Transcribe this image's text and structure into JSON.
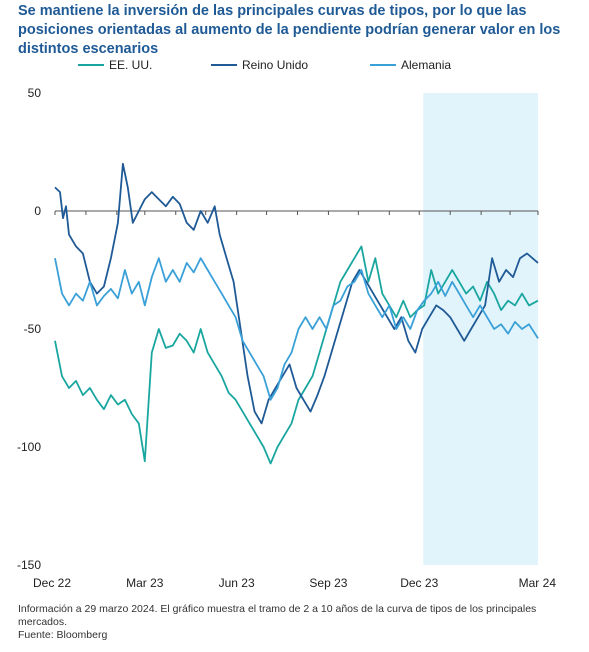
{
  "title": "Se mantiene la inversión de las principales curvas de tipos, por lo que las posiciones orientadas al aumento de la pendiente podrían generar valor en los distintos escenarios",
  "footnote": {
    "line1": "Información a 29 marzo 2024. El gráfico muestra el tramo de 2 a 10 años de la curva de tipos de los principales mercados.",
    "line2": "Fuente: Bloomberg"
  },
  "chart_data": {
    "type": "line",
    "title": "Se mantiene la inversión de las principales curvas de tipos, por lo que las posiciones orientadas al aumento de la pendiente podrían generar valor en los distintos escenarios",
    "xlabel": "",
    "ylabel": "",
    "ylim": [
      -150,
      50
    ],
    "yticks": [
      "50",
      "0",
      "-50",
      "-100",
      "-150"
    ],
    "xticks": [
      "Dec 22",
      "Mar 23",
      "Jun 23",
      "Sep 23",
      "Dec 23",
      "Mar 24"
    ],
    "grid": false,
    "legend_position": "top",
    "highlight_region": {
      "from": "2023-12-05",
      "to": "2024-03-29",
      "color": "#e2f4fb"
    },
    "series": [
      {
        "name": "EE. UU.",
        "color": "#1aa6a0",
        "points": [
          [
            "2022-12-01",
            -55
          ],
          [
            "2022-12-08",
            -70
          ],
          [
            "2022-12-15",
            -75
          ],
          [
            "2022-12-22",
            -72
          ],
          [
            "2022-12-29",
            -78
          ],
          [
            "2023-01-05",
            -75
          ],
          [
            "2023-01-12",
            -80
          ],
          [
            "2023-01-19",
            -84
          ],
          [
            "2023-01-26",
            -78
          ],
          [
            "2023-02-02",
            -82
          ],
          [
            "2023-02-09",
            -80
          ],
          [
            "2023-02-16",
            -86
          ],
          [
            "2023-02-23",
            -90
          ],
          [
            "2023-03-01",
            -106
          ],
          [
            "2023-03-08",
            -60
          ],
          [
            "2023-03-15",
            -50
          ],
          [
            "2023-03-22",
            -58
          ],
          [
            "2023-03-29",
            -57
          ],
          [
            "2023-04-05",
            -52
          ],
          [
            "2023-04-12",
            -55
          ],
          [
            "2023-04-19",
            -60
          ],
          [
            "2023-04-26",
            -50
          ],
          [
            "2023-05-03",
            -60
          ],
          [
            "2023-05-10",
            -65
          ],
          [
            "2023-05-17",
            -70
          ],
          [
            "2023-05-24",
            -77
          ],
          [
            "2023-05-31",
            -80
          ],
          [
            "2023-06-07",
            -85
          ],
          [
            "2023-06-14",
            -90
          ],
          [
            "2023-06-21",
            -95
          ],
          [
            "2023-06-28",
            -100
          ],
          [
            "2023-07-05",
            -107
          ],
          [
            "2023-07-12",
            -100
          ],
          [
            "2023-07-19",
            -95
          ],
          [
            "2023-07-26",
            -90
          ],
          [
            "2023-08-02",
            -80
          ],
          [
            "2023-08-09",
            -75
          ],
          [
            "2023-08-16",
            -70
          ],
          [
            "2023-08-23",
            -60
          ],
          [
            "2023-08-30",
            -50
          ],
          [
            "2023-09-06",
            -40
          ],
          [
            "2023-09-13",
            -30
          ],
          [
            "2023-09-20",
            -25
          ],
          [
            "2023-09-27",
            -20
          ],
          [
            "2023-10-04",
            -15
          ],
          [
            "2023-10-11",
            -30
          ],
          [
            "2023-10-18",
            -20
          ],
          [
            "2023-10-25",
            -35
          ],
          [
            "2023-11-01",
            -40
          ],
          [
            "2023-11-08",
            -45
          ],
          [
            "2023-11-15",
            -38
          ],
          [
            "2023-11-22",
            -45
          ],
          [
            "2023-11-29",
            -42
          ],
          [
            "2023-12-06",
            -40
          ],
          [
            "2023-12-13",
            -25
          ],
          [
            "2023-12-20",
            -35
          ],
          [
            "2023-12-27",
            -30
          ],
          [
            "2024-01-03",
            -25
          ],
          [
            "2024-01-10",
            -30
          ],
          [
            "2024-01-17",
            -35
          ],
          [
            "2024-01-24",
            -32
          ],
          [
            "2024-01-31",
            -38
          ],
          [
            "2024-02-07",
            -30
          ],
          [
            "2024-02-14",
            -35
          ],
          [
            "2024-02-21",
            -42
          ],
          [
            "2024-02-28",
            -38
          ],
          [
            "2024-03-06",
            -40
          ],
          [
            "2024-03-13",
            -35
          ],
          [
            "2024-03-20",
            -40
          ],
          [
            "2024-03-29",
            -38
          ]
        ]
      },
      {
        "name": "Reino Unido",
        "color": "#1f5a96",
        "points": [
          [
            "2022-12-01",
            10
          ],
          [
            "2022-12-06",
            8
          ],
          [
            "2022-12-09",
            -3
          ],
          [
            "2022-12-12",
            2
          ],
          [
            "2022-12-15",
            -10
          ],
          [
            "2022-12-22",
            -15
          ],
          [
            "2022-12-29",
            -18
          ],
          [
            "2023-01-05",
            -30
          ],
          [
            "2023-01-12",
            -35
          ],
          [
            "2023-01-19",
            -32
          ],
          [
            "2023-01-26",
            -20
          ],
          [
            "2023-02-02",
            -5
          ],
          [
            "2023-02-07",
            20
          ],
          [
            "2023-02-12",
            10
          ],
          [
            "2023-02-17",
            -5
          ],
          [
            "2023-02-23",
            0
          ],
          [
            "2023-03-01",
            5
          ],
          [
            "2023-03-08",
            8
          ],
          [
            "2023-03-15",
            5
          ],
          [
            "2023-03-22",
            2
          ],
          [
            "2023-03-29",
            6
          ],
          [
            "2023-04-05",
            3
          ],
          [
            "2023-04-12",
            -5
          ],
          [
            "2023-04-19",
            -8
          ],
          [
            "2023-04-26",
            0
          ],
          [
            "2023-05-03",
            -5
          ],
          [
            "2023-05-10",
            2
          ],
          [
            "2023-05-15",
            -10
          ],
          [
            "2023-05-22",
            -20
          ],
          [
            "2023-05-29",
            -30
          ],
          [
            "2023-06-05",
            -50
          ],
          [
            "2023-06-12",
            -70
          ],
          [
            "2023-06-19",
            -85
          ],
          [
            "2023-06-26",
            -90
          ],
          [
            "2023-07-03",
            -80
          ],
          [
            "2023-07-10",
            -75
          ],
          [
            "2023-07-17",
            -70
          ],
          [
            "2023-07-24",
            -65
          ],
          [
            "2023-07-31",
            -75
          ],
          [
            "2023-08-07",
            -80
          ],
          [
            "2023-08-14",
            -85
          ],
          [
            "2023-08-21",
            -78
          ],
          [
            "2023-08-28",
            -70
          ],
          [
            "2023-09-04",
            -60
          ],
          [
            "2023-09-11",
            -50
          ],
          [
            "2023-09-18",
            -40
          ],
          [
            "2023-09-25",
            -30
          ],
          [
            "2023-10-02",
            -25
          ],
          [
            "2023-10-09",
            -30
          ],
          [
            "2023-10-16",
            -35
          ],
          [
            "2023-10-23",
            -40
          ],
          [
            "2023-10-30",
            -45
          ],
          [
            "2023-11-06",
            -50
          ],
          [
            "2023-11-13",
            -45
          ],
          [
            "2023-11-20",
            -55
          ],
          [
            "2023-11-27",
            -60
          ],
          [
            "2023-12-04",
            -50
          ],
          [
            "2023-12-11",
            -45
          ],
          [
            "2023-12-18",
            -40
          ],
          [
            "2023-12-25",
            -42
          ],
          [
            "2024-01-01",
            -45
          ],
          [
            "2024-01-08",
            -50
          ],
          [
            "2024-01-15",
            -55
          ],
          [
            "2024-01-22",
            -50
          ],
          [
            "2024-01-29",
            -45
          ],
          [
            "2024-02-05",
            -40
          ],
          [
            "2024-02-12",
            -20
          ],
          [
            "2024-02-19",
            -30
          ],
          [
            "2024-02-26",
            -25
          ],
          [
            "2024-03-04",
            -28
          ],
          [
            "2024-03-11",
            -20
          ],
          [
            "2024-03-18",
            -18
          ],
          [
            "2024-03-29",
            -22
          ]
        ]
      },
      {
        "name": "Alemania",
        "color": "#3aa0d8",
        "points": [
          [
            "2022-12-01",
            -20
          ],
          [
            "2022-12-08",
            -35
          ],
          [
            "2022-12-15",
            -40
          ],
          [
            "2022-12-22",
            -35
          ],
          [
            "2022-12-29",
            -38
          ],
          [
            "2023-01-05",
            -30
          ],
          [
            "2023-01-12",
            -40
          ],
          [
            "2023-01-19",
            -36
          ],
          [
            "2023-01-26",
            -33
          ],
          [
            "2023-02-02",
            -37
          ],
          [
            "2023-02-09",
            -25
          ],
          [
            "2023-02-16",
            -35
          ],
          [
            "2023-02-23",
            -30
          ],
          [
            "2023-03-01",
            -40
          ],
          [
            "2023-03-08",
            -28
          ],
          [
            "2023-03-15",
            -20
          ],
          [
            "2023-03-22",
            -30
          ],
          [
            "2023-03-29",
            -25
          ],
          [
            "2023-04-05",
            -30
          ],
          [
            "2023-04-12",
            -22
          ],
          [
            "2023-04-19",
            -26
          ],
          [
            "2023-04-26",
            -20
          ],
          [
            "2023-05-03",
            -25
          ],
          [
            "2023-05-10",
            -30
          ],
          [
            "2023-05-17",
            -35
          ],
          [
            "2023-05-24",
            -40
          ],
          [
            "2023-05-31",
            -45
          ],
          [
            "2023-06-07",
            -55
          ],
          [
            "2023-06-14",
            -60
          ],
          [
            "2023-06-21",
            -65
          ],
          [
            "2023-06-28",
            -70
          ],
          [
            "2023-07-05",
            -80
          ],
          [
            "2023-07-12",
            -75
          ],
          [
            "2023-07-19",
            -65
          ],
          [
            "2023-07-26",
            -60
          ],
          [
            "2023-08-02",
            -50
          ],
          [
            "2023-08-09",
            -45
          ],
          [
            "2023-08-16",
            -50
          ],
          [
            "2023-08-23",
            -45
          ],
          [
            "2023-08-30",
            -50
          ],
          [
            "2023-09-06",
            -40
          ],
          [
            "2023-09-13",
            -38
          ],
          [
            "2023-09-20",
            -32
          ],
          [
            "2023-09-27",
            -30
          ],
          [
            "2023-10-04",
            -25
          ],
          [
            "2023-10-11",
            -35
          ],
          [
            "2023-10-18",
            -40
          ],
          [
            "2023-10-25",
            -45
          ],
          [
            "2023-11-01",
            -40
          ],
          [
            "2023-11-08",
            -50
          ],
          [
            "2023-11-15",
            -45
          ],
          [
            "2023-11-22",
            -50
          ],
          [
            "2023-11-29",
            -42
          ],
          [
            "2023-12-06",
            -38
          ],
          [
            "2023-12-13",
            -35
          ],
          [
            "2023-12-20",
            -30
          ],
          [
            "2023-12-27",
            -36
          ],
          [
            "2024-01-03",
            -30
          ],
          [
            "2024-01-10",
            -35
          ],
          [
            "2024-01-17",
            -40
          ],
          [
            "2024-01-24",
            -45
          ],
          [
            "2024-01-31",
            -40
          ],
          [
            "2024-02-07",
            -45
          ],
          [
            "2024-02-14",
            -50
          ],
          [
            "2024-02-21",
            -48
          ],
          [
            "2024-02-28",
            -52
          ],
          [
            "2024-03-06",
            -47
          ],
          [
            "2024-03-13",
            -50
          ],
          [
            "2024-03-20",
            -48
          ],
          [
            "2024-03-29",
            -54
          ]
        ]
      }
    ]
  }
}
